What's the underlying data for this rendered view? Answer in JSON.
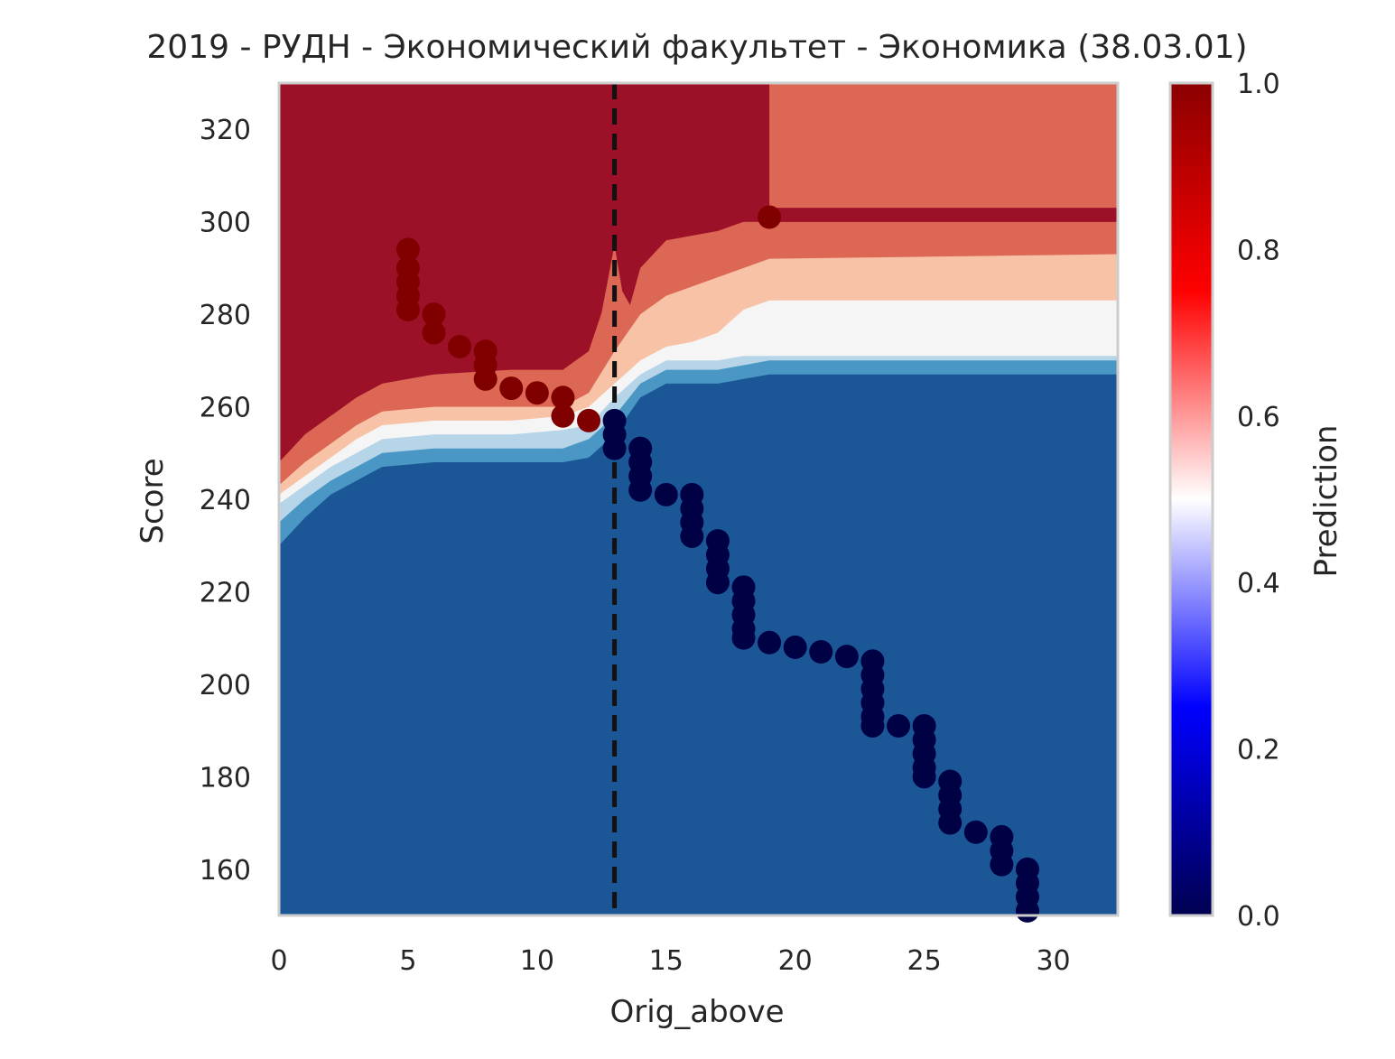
{
  "chart_data": {
    "type": "scatter",
    "title": "2019 - РУДН - Экономический факультет - Экономика (38.03.01)",
    "xlabel": "Orig_above",
    "ylabel": "Score",
    "xlim": [
      0,
      32.5
    ],
    "ylim": [
      150,
      330
    ],
    "xticks": [
      0,
      5,
      10,
      15,
      20,
      25,
      30
    ],
    "yticks": [
      160,
      180,
      200,
      220,
      240,
      260,
      280,
      300,
      320
    ],
    "grid": false,
    "colorbar": {
      "label": "Prediction",
      "range": [
        0,
        1
      ],
      "ticks": [
        "0.0",
        "0.2",
        "0.4",
        "0.6",
        "0.8",
        "1.0"
      ],
      "colormap": [
        "#000050",
        "#0000ff",
        "#ffffff",
        "#ff0000",
        "#8b0000"
      ]
    },
    "vline": {
      "x": 13,
      "style": "dashed",
      "color": "#111111"
    },
    "contour_colors": [
      "#1b5796",
      "#4a96c4",
      "#b7d5e8",
      "#f5f5f5",
      "#f8c2a6",
      "#dc6754",
      "#9c1127"
    ],
    "points_class1": {
      "color": "#800000",
      "points": [
        [
          5,
          294
        ],
        [
          5,
          290
        ],
        [
          5,
          287
        ],
        [
          5,
          284
        ],
        [
          5,
          281
        ],
        [
          6,
          280
        ],
        [
          6,
          276
        ],
        [
          7,
          273
        ],
        [
          8,
          272
        ],
        [
          8,
          269
        ],
        [
          8,
          266
        ],
        [
          9,
          264
        ],
        [
          10,
          263
        ],
        [
          11,
          262
        ],
        [
          11,
          258
        ],
        [
          12,
          257
        ],
        [
          19,
          301
        ]
      ]
    },
    "points_class0": {
      "color": "#000045",
      "points": [
        [
          13,
          257
        ],
        [
          13,
          254
        ],
        [
          13,
          251
        ],
        [
          14,
          251
        ],
        [
          14,
          248
        ],
        [
          14,
          245
        ],
        [
          14,
          242
        ],
        [
          15,
          241
        ],
        [
          16,
          241
        ],
        [
          16,
          238
        ],
        [
          16,
          235
        ],
        [
          16,
          232
        ],
        [
          17,
          231
        ],
        [
          17,
          228
        ],
        [
          17,
          225
        ],
        [
          17,
          222
        ],
        [
          18,
          221
        ],
        [
          18,
          218
        ],
        [
          18,
          215
        ],
        [
          18,
          212
        ],
        [
          18,
          210
        ],
        [
          19,
          209
        ],
        [
          20,
          208
        ],
        [
          21,
          207
        ],
        [
          22,
          206
        ],
        [
          23,
          205
        ],
        [
          23,
          202
        ],
        [
          23,
          199
        ],
        [
          23,
          196
        ],
        [
          23,
          193
        ],
        [
          23,
          191
        ],
        [
          24,
          191
        ],
        [
          25,
          191
        ],
        [
          25,
          188
        ],
        [
          25,
          185
        ],
        [
          25,
          182
        ],
        [
          25,
          180
        ],
        [
          26,
          179
        ],
        [
          26,
          176
        ],
        [
          26,
          173
        ],
        [
          26,
          170
        ],
        [
          27,
          168
        ],
        [
          28,
          167
        ],
        [
          28,
          164
        ],
        [
          28,
          161
        ],
        [
          29,
          160
        ],
        [
          29,
          157
        ],
        [
          29,
          154
        ],
        [
          29,
          151
        ]
      ]
    },
    "regions": [
      {
        "color": "#f8c2a6",
        "points": [
          [
            0,
            330
          ],
          [
            32.5,
            330
          ],
          [
            32.5,
            150
          ],
          [
            0,
            150
          ]
        ]
      }
    ]
  }
}
